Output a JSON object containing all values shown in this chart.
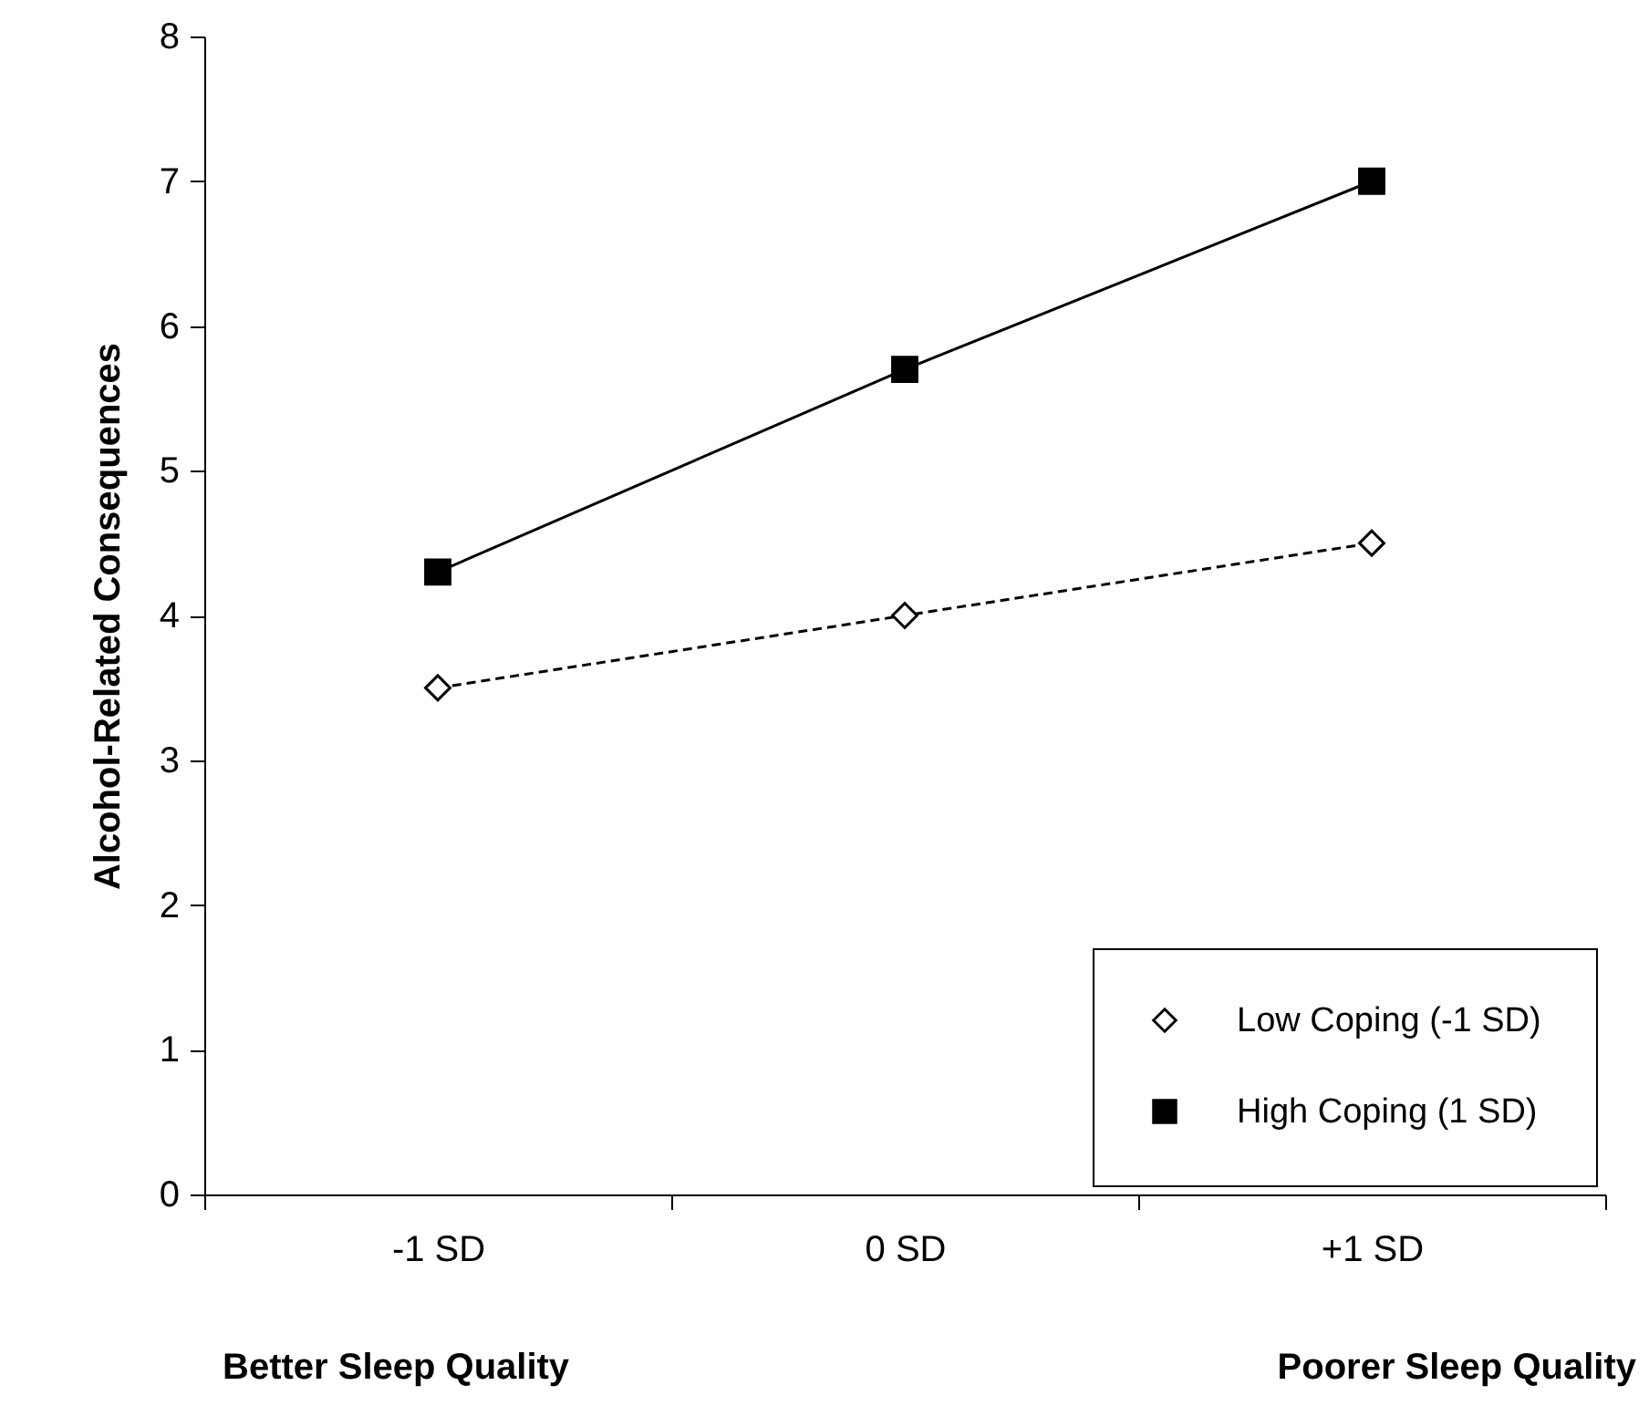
{
  "chart_data": {
    "type": "line",
    "ylabel": "Alcohol-Related Consequences",
    "categories": [
      "-1 SD",
      "0 SD",
      "+1 SD"
    ],
    "series": [
      {
        "name": "Low Coping (-1 SD)",
        "color": "#000000",
        "values": [
          3.5,
          4.0,
          4.5
        ],
        "marker": "diamond",
        "line_style": "dashed"
      },
      {
        "name": "High Coping (1 SD)",
        "color": "#000000",
        "values": [
          4.3,
          5.7,
          7.0
        ],
        "marker": "square",
        "line_style": "solid"
      }
    ],
    "ylim": [
      0,
      8
    ],
    "yticks": [
      0,
      1,
      2,
      3,
      4,
      5,
      6,
      7,
      8
    ],
    "grid": false,
    "legend": "bottom right",
    "annotations": [
      "Better Sleep Quality",
      "Poorer Sleep Quality"
    ]
  }
}
